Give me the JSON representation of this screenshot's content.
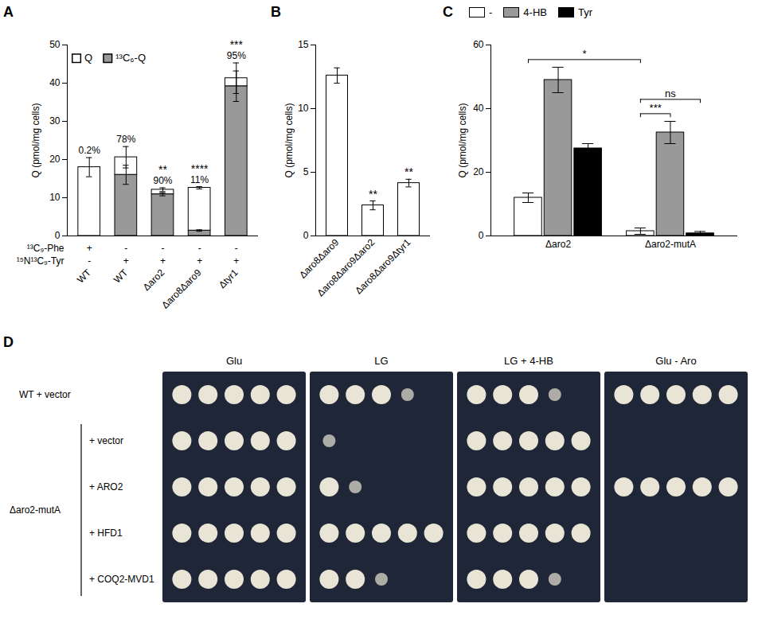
{
  "chart_data": [
    {
      "panel": "A",
      "type": "bar",
      "stacked": true,
      "legend": "top-left",
      "y_label": "Q (pmol/mg cells)",
      "ylim": [
        0,
        50
      ],
      "yticks": [
        0,
        10,
        20,
        30,
        40,
        50
      ],
      "categories": [
        "WT",
        "WT",
        "Δaro2",
        "Δaro8Δaro9",
        "Δtyr1"
      ],
      "series": [
        {
          "name": "Q",
          "color": "#ffffff",
          "values": [
            18,
            4.6,
            1.2,
            11.2,
            2.1
          ],
          "errors": [
            2.5,
            2.8,
            0.5,
            0.3,
            4
          ]
        },
        {
          "name": "¹³C₆-Q",
          "color": "#999999",
          "values": [
            0,
            16,
            10.9,
            1.4,
            39.2
          ],
          "errors": [
            null,
            2.5,
            0.4,
            0.2,
            4
          ]
        }
      ],
      "annotations": [
        "0.2%",
        "78%",
        "90%",
        "11%",
        "95%"
      ],
      "significance": [
        null,
        null,
        "**",
        "****",
        "***"
      ],
      "conditions": [
        {
          "label": "¹³C₉-Phe",
          "values": [
            "+",
            "-",
            "-",
            "-",
            "-"
          ]
        },
        {
          "label": "¹⁵N¹³C₉-Tyr",
          "values": [
            "-",
            "+",
            "+",
            "+",
            "+"
          ]
        }
      ]
    },
    {
      "panel": "B",
      "type": "bar",
      "color": "#ffffff",
      "y_label": "Q (pmol/mg cells)",
      "ylim": [
        0,
        15
      ],
      "yticks": [
        0,
        5,
        10,
        15
      ],
      "categories": [
        "Δaro8Δaro9",
        "Δaro8Δaro9Δaro2",
        "Δaro8Δaro9Δtyr1"
      ],
      "values": [
        12.6,
        2.4,
        4.15
      ],
      "errors": [
        0.6,
        0.35,
        0.3
      ],
      "significance": [
        null,
        "**",
        "**"
      ]
    },
    {
      "panel": "C",
      "type": "bar",
      "legend": "top",
      "y_label": "Q (pmol/mg cells)",
      "ylim": [
        0,
        60
      ],
      "yticks": [
        0,
        20,
        40,
        60
      ],
      "categories": [
        "Δaro2",
        "Δaro2-mutA"
      ],
      "series": [
        {
          "name": "-",
          "color": "#ffffff",
          "values": [
            12,
            1.5
          ],
          "errors": [
            1.5,
            1
          ]
        },
        {
          "name": "4-HB",
          "color": "#999999",
          "values": [
            49,
            32.5
          ],
          "errors": [
            4,
            3.5
          ]
        },
        {
          "name": "Tyr",
          "color": "#000000",
          "values": [
            27.5,
            0.8
          ],
          "errors": [
            1.5,
            0.6
          ]
        }
      ],
      "comparisons": [
        {
          "from": [
            "Δaro2",
            "-"
          ],
          "to": [
            "Δaro2-mutA",
            "-"
          ],
          "label": "*"
        },
        {
          "from": [
            "Δaro2-mutA",
            "-"
          ],
          "to": [
            "Δaro2-mutA",
            "4-HB"
          ],
          "label": "***"
        },
        {
          "from": [
            "Δaro2-mutA",
            "-"
          ],
          "to": [
            "Δaro2-mutA",
            "Tyr"
          ],
          "label": "ns"
        }
      ]
    }
  ],
  "spot_assay": {
    "panel": "D",
    "conditions": [
      "Glu",
      "LG",
      "LG + 4-HB",
      "Glu - Aro"
    ],
    "rows": [
      "WT + vector",
      "+ vector",
      "+ ARO2",
      "+ HFD1",
      "+ COQ2-MVD1"
    ],
    "group": {
      "label": "Δaro2-mutA",
      "rows": [
        "+ vector",
        "+ ARO2",
        "+ HFD1",
        "+ COQ2-MVD1"
      ]
    },
    "dilutions": 5,
    "visible_spots": [
      [
        5,
        4,
        4,
        5
      ],
      [
        5,
        1,
        5,
        0
      ],
      [
        5,
        2,
        5,
        5
      ],
      [
        5,
        5,
        5,
        0
      ],
      [
        5,
        3,
        4,
        0
      ]
    ]
  }
}
